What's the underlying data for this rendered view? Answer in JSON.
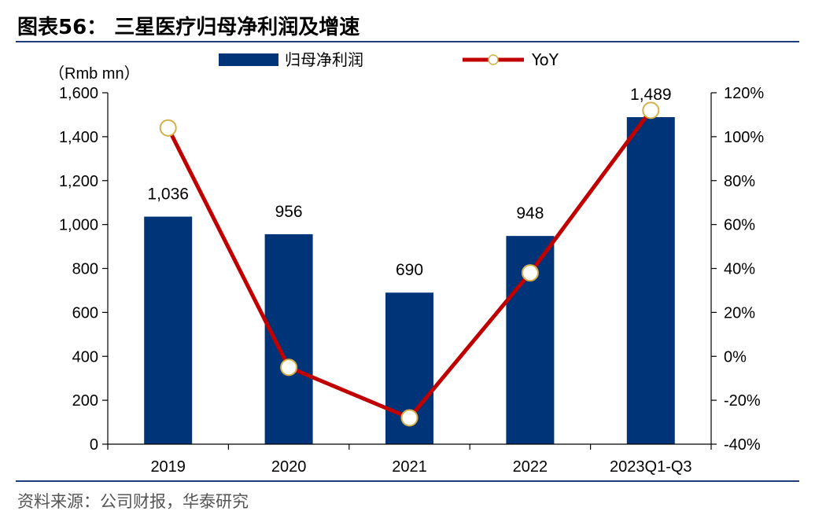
{
  "figure": {
    "title": "图表56： 三星医疗归母净利润及增速",
    "source": "资料来源：公司财报，华泰研究"
  },
  "chart_data": {
    "type": "bar",
    "categories": [
      "2019",
      "2020",
      "2021",
      "2022",
      "2023Q1-Q3"
    ],
    "series": [
      {
        "name": "归母净利润",
        "type": "bar",
        "axis": "left",
        "color": "#003478",
        "values": [
          1036,
          956,
          690,
          948,
          1489
        ],
        "labels": [
          "1,036",
          "956",
          "690",
          "948",
          "1,489"
        ]
      },
      {
        "name": "YoY",
        "type": "line",
        "axis": "right",
        "color": "#c00000",
        "marker_fill": "#ffffff",
        "marker_edge": "#d4b04a",
        "values": [
          104,
          -5,
          -28,
          38,
          112
        ]
      }
    ],
    "y_left": {
      "unit_label": "（Rmb mn）",
      "ylim": [
        0,
        1600
      ],
      "ticks": [
        0,
        200,
        400,
        600,
        800,
        1000,
        1200,
        1400,
        1600
      ],
      "tick_labels": [
        "0",
        "200",
        "400",
        "600",
        "800",
        "1,000",
        "1,200",
        "1,400",
        "1,600"
      ]
    },
    "y_right": {
      "ylim": [
        -40,
        120
      ],
      "ticks": [
        -40,
        -20,
        0,
        20,
        40,
        60,
        80,
        100,
        120
      ],
      "tick_labels": [
        "-40%",
        "-20%",
        "0%",
        "20%",
        "40%",
        "60%",
        "80%",
        "100%",
        "120%"
      ]
    },
    "grid": false,
    "legend_position": "top-center"
  }
}
